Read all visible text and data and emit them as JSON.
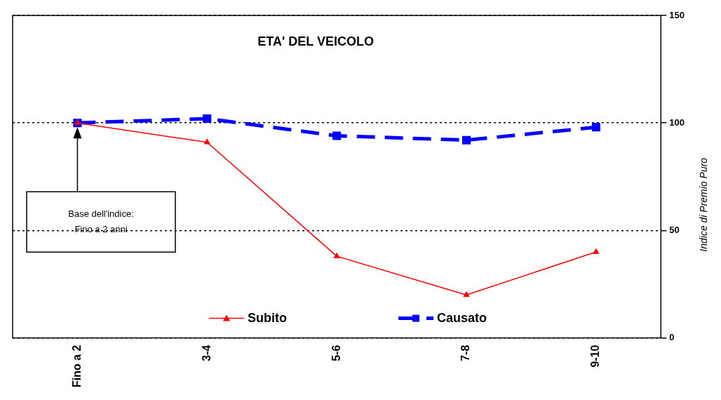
{
  "chart_data": {
    "type": "line",
    "title": "ETA' DEL VEICOLO",
    "ylabel": "Indice di Premio Puro",
    "categories": [
      "Fino a 2",
      "3-4",
      "5-6",
      "7-8",
      "9-10"
    ],
    "series": [
      {
        "name": "Subito",
        "color": "#ff0000",
        "values": [
          100,
          91,
          38,
          20,
          40
        ],
        "marker": "triangle",
        "line_style": "solid"
      },
      {
        "name": "Causato",
        "color": "#0000ff",
        "values": [
          100,
          102,
          94,
          92,
          98
        ],
        "marker": "square",
        "line_style": "dashed"
      }
    ],
    "ylim": [
      0,
      150
    ],
    "yticks": [
      0,
      50,
      100,
      150
    ],
    "grid": "y",
    "legend": "bottom",
    "annotations": [
      "Base dell'indice:\nFino a 2 anni"
    ]
  }
}
